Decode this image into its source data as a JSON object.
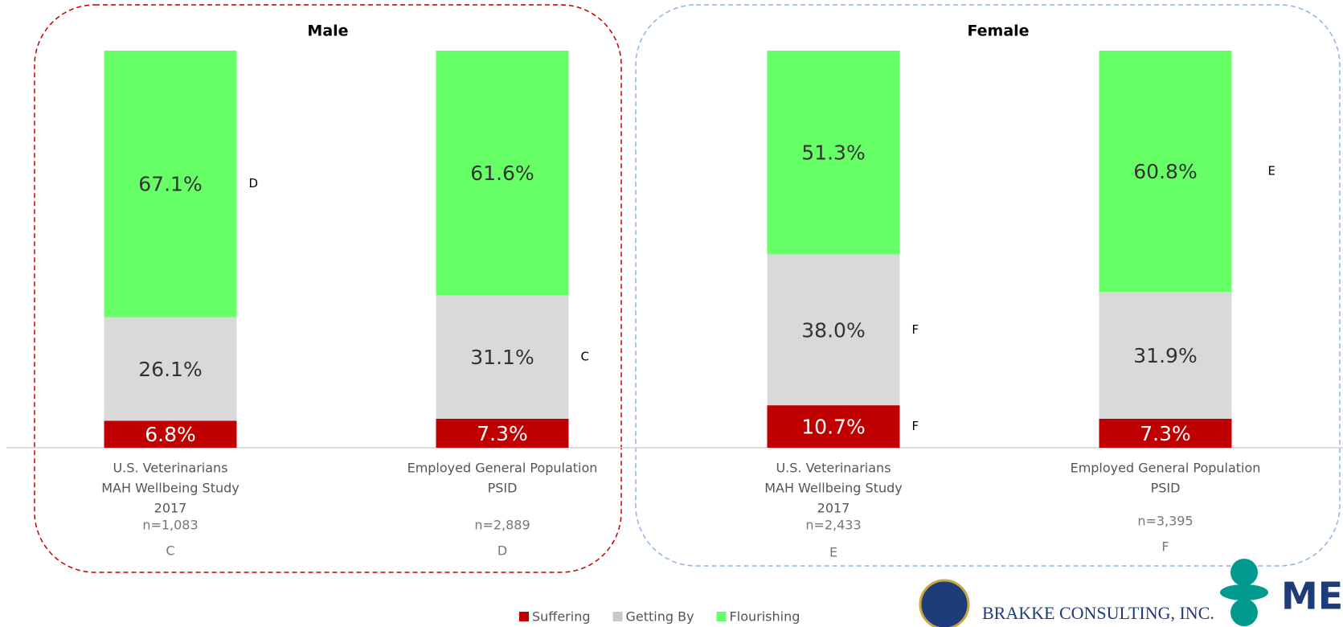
{
  "chart_data": {
    "type": "stacked_bar",
    "groups": [
      "Male",
      "Female"
    ],
    "categories": [
      [
        "U.S. Veterinarians",
        "MAH Wellbeing Study",
        "2017"
      ],
      [
        "Employed General Population",
        "PSID"
      ],
      [
        "U.S. Veterinarians",
        "MAH Wellbeing Study",
        "2017"
      ],
      [
        "Employed General Population",
        "PSID"
      ]
    ],
    "sample_sizes": [
      "n=1,083",
      "n=2,889",
      "n=2,433",
      "n=3,395"
    ],
    "codes": [
      "C",
      "D",
      "E",
      "F"
    ],
    "ylim": [
      0,
      100
    ],
    "series": [
      {
        "name": "Suffering",
        "color": "#c00000",
        "values": [
          6.8,
          7.3,
          10.7,
          7.3
        ],
        "value_labels": [
          "6.8%",
          "7.3%",
          "10.7%",
          "7.3%"
        ],
        "significance": [
          null,
          null,
          "F",
          null
        ]
      },
      {
        "name": "Getting By",
        "color": "#d9d9d9",
        "values": [
          26.1,
          31.1,
          38.0,
          31.9
        ],
        "value_labels": [
          "26.1%",
          "31.1%",
          "38.0%",
          "31.9%"
        ],
        "significance": [
          null,
          "C",
          "F",
          null
        ]
      },
      {
        "name": "Flourishing",
        "color": "#66ff66",
        "values": [
          67.1,
          61.6,
          51.3,
          60.8
        ],
        "value_labels": [
          "67.1%",
          "61.6%",
          "51.3%",
          "60.8%"
        ],
        "significance": [
          "D",
          null,
          null,
          "E"
        ]
      }
    ],
    "logos": [
      "BRAKKE CONSULTING, INC.",
      "ME"
    ]
  }
}
